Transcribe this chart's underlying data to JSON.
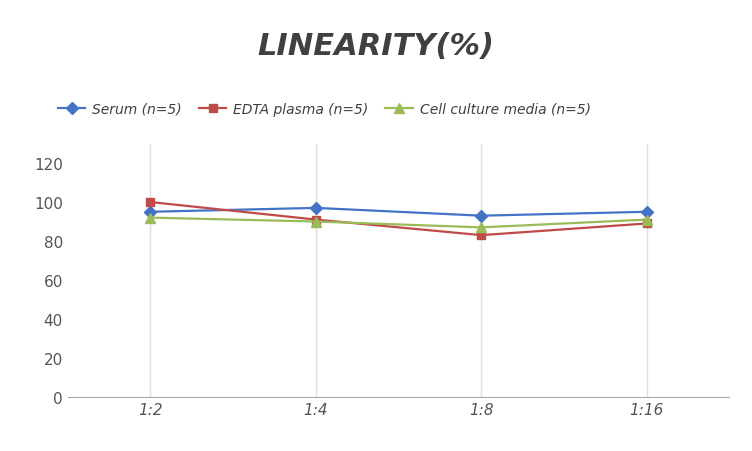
{
  "title": "LINEARITY(%)",
  "x_labels": [
    "1:2",
    "1:4",
    "1:8",
    "1:16"
  ],
  "x_positions": [
    0,
    1,
    2,
    3
  ],
  "series": [
    {
      "label": "Serum (n=5)",
      "values": [
        95,
        97,
        93,
        95
      ],
      "color": "#4472C4",
      "marker": "D",
      "marker_size": 6,
      "linewidth": 1.6
    },
    {
      "label": "EDTA plasma (n=5)",
      "values": [
        100,
        91,
        83,
        89
      ],
      "color": "#BE4B48",
      "marker": "s",
      "marker_size": 6,
      "linewidth": 1.6
    },
    {
      "label": "Cell culture media (n=5)",
      "values": [
        92,
        90,
        87,
        91
      ],
      "color": "#9BBB59",
      "marker": "^",
      "marker_size": 7,
      "linewidth": 1.6
    }
  ],
  "ylim": [
    0,
    130
  ],
  "yticks": [
    0,
    20,
    40,
    60,
    80,
    100,
    120
  ],
  "grid_color": "#E0E0E0",
  "background_color": "#FFFFFF",
  "title_fontsize": 22,
  "title_fontstyle": "italic",
  "title_fontweight": "bold",
  "title_color": "#404040",
  "legend_fontsize": 10,
  "tick_fontsize": 11
}
